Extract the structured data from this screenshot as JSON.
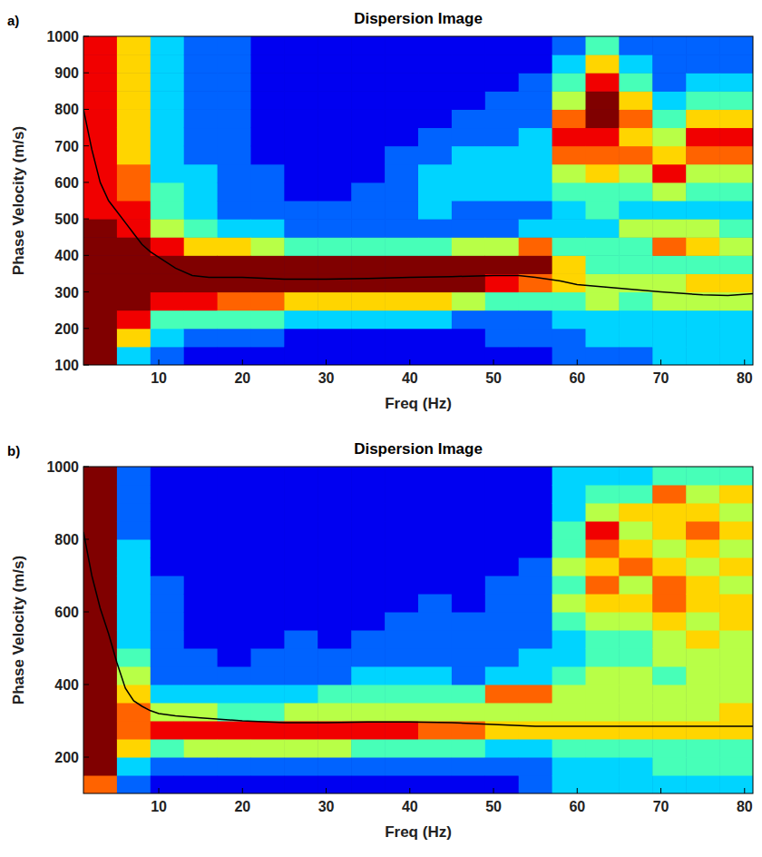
{
  "chart_data": [
    {
      "type": "heatmap",
      "panel": "a)",
      "title": "Dispersion Image",
      "xlabel": "Freq (Hz)",
      "ylabel": "Phase Velocity (m/s)",
      "xlim": [
        1,
        81
      ],
      "xticks": [
        10,
        20,
        30,
        40,
        50,
        60,
        70,
        80
      ],
      "ylim": [
        100,
        1000
      ],
      "yticks": [
        100,
        200,
        300,
        400,
        500,
        600,
        700,
        800,
        900,
        1000
      ],
      "zlim": [
        0,
        9
      ],
      "x_bins": [
        1,
        5,
        9,
        13,
        17,
        21,
        25,
        29,
        33,
        37,
        41,
        45,
        49,
        53,
        57,
        61,
        65,
        69,
        73,
        77,
        81
      ],
      "y_bins": [
        100,
        150,
        200,
        250,
        300,
        350,
        400,
        450,
        500,
        550,
        600,
        650,
        700,
        750,
        800,
        850,
        900,
        950,
        1000
      ],
      "cells": [
        [
          9,
          9,
          9,
          9,
          9,
          9,
          9,
          9,
          8,
          8,
          8,
          8,
          8,
          8,
          8,
          8,
          8,
          8
        ],
        [
          3,
          6,
          8,
          9,
          9,
          9,
          9,
          8,
          8,
          7,
          7,
          6,
          6,
          6,
          6,
          6,
          6,
          6
        ],
        [
          2,
          3,
          4,
          8,
          9,
          9,
          8,
          5,
          4,
          4,
          3,
          3,
          3,
          3,
          3,
          3,
          3,
          3
        ],
        [
          1,
          2,
          4,
          8,
          9,
          9,
          6,
          4,
          3,
          3,
          3,
          2,
          2,
          2,
          2,
          2,
          2,
          2
        ],
        [
          1,
          2,
          4,
          7,
          9,
          9,
          6,
          3,
          2,
          2,
          2,
          2,
          2,
          2,
          2,
          2,
          2,
          2
        ],
        [
          1,
          2,
          4,
          7,
          9,
          9,
          5,
          3,
          2,
          2,
          2,
          1,
          1,
          1,
          1,
          1,
          1,
          1
        ],
        [
          1,
          1,
          3,
          6,
          9,
          9,
          4,
          2,
          2,
          1,
          1,
          1,
          1,
          1,
          1,
          1,
          1,
          1
        ],
        [
          1,
          1,
          3,
          6,
          9,
          9,
          4,
          2,
          2,
          1,
          1,
          1,
          1,
          1,
          1,
          1,
          1,
          1
        ],
        [
          1,
          1,
          3,
          6,
          9,
          9,
          4,
          2,
          2,
          2,
          1,
          1,
          1,
          1,
          1,
          1,
          1,
          1
        ],
        [
          1,
          1,
          3,
          6,
          9,
          9,
          4,
          2,
          2,
          2,
          2,
          2,
          1,
          1,
          1,
          1,
          1,
          1
        ],
        [
          1,
          1,
          3,
          6,
          9,
          9,
          4,
          2,
          3,
          3,
          3,
          2,
          2,
          1,
          1,
          1,
          1,
          1
        ],
        [
          1,
          1,
          2,
          5,
          9,
          9,
          5,
          2,
          2,
          3,
          3,
          3,
          2,
          2,
          1,
          1,
          1,
          1
        ],
        [
          1,
          2,
          2,
          4,
          8,
          9,
          5,
          2,
          2,
          3,
          3,
          3,
          2,
          2,
          2,
          1,
          1,
          1
        ],
        [
          1,
          2,
          2,
          4,
          7,
          9,
          7,
          3,
          2,
          3,
          3,
          3,
          3,
          2,
          2,
          2,
          1,
          1
        ],
        [
          2,
          2,
          3,
          4,
          6,
          6,
          4,
          3,
          3,
          4,
          5,
          7,
          8,
          7,
          5,
          4,
          3,
          2
        ],
        [
          2,
          3,
          3,
          5,
          5,
          4,
          4,
          3,
          4,
          4,
          6,
          7,
          8,
          9,
          9,
          8,
          6,
          4
        ],
        [
          2,
          3,
          3,
          4,
          5,
          4,
          4,
          5,
          3,
          4,
          5,
          7,
          6,
          7,
          6,
          4,
          3,
          2
        ],
        [
          3,
          3,
          3,
          5,
          5,
          4,
          7,
          5,
          3,
          5,
          8,
          6,
          5,
          4,
          3,
          2,
          2,
          2
        ],
        [
          3,
          3,
          3,
          5,
          6,
          4,
          6,
          5,
          3,
          4,
          5,
          7,
          8,
          6,
          4,
          3,
          2,
          2
        ],
        [
          3,
          3,
          3,
          5,
          6,
          4,
          5,
          4,
          3,
          4,
          5,
          7,
          8,
          6,
          4,
          3,
          2,
          2
        ]
      ],
      "series": [
        {
          "type": "line",
          "color": "#000000",
          "x": [
            1,
            2,
            3,
            4,
            5,
            6,
            7,
            8,
            9,
            10,
            12,
            14,
            16,
            18,
            20,
            25,
            30,
            35,
            40,
            45,
            50,
            53,
            55,
            58,
            60,
            65,
            70,
            75,
            78,
            81
          ],
          "values": [
            800,
            690,
            600,
            550,
            520,
            490,
            460,
            430,
            410,
            395,
            365,
            345,
            340,
            340,
            340,
            335,
            335,
            337,
            340,
            342,
            345,
            345,
            340,
            330,
            320,
            310,
            300,
            292,
            290,
            295
          ]
        }
      ]
    },
    {
      "type": "heatmap",
      "panel": "b)",
      "title": "Dispersion Image",
      "xlabel": "Freq (Hz)",
      "ylabel": "Phase Velocity (m/s)",
      "xlim": [
        1,
        81
      ],
      "xticks": [
        10,
        20,
        30,
        40,
        50,
        60,
        70,
        80
      ],
      "ylim": [
        100,
        1000
      ],
      "yticks": [
        200,
        400,
        600,
        800,
        1000
      ],
      "zlim": [
        0,
        9
      ],
      "x_bins": [
        1,
        5,
        9,
        13,
        17,
        21,
        25,
        29,
        33,
        37,
        41,
        45,
        49,
        53,
        57,
        61,
        65,
        69,
        73,
        77,
        81
      ],
      "y_bins": [
        100,
        150,
        200,
        250,
        300,
        350,
        400,
        450,
        500,
        550,
        600,
        650,
        700,
        750,
        800,
        850,
        900,
        950,
        1000
      ],
      "cells": [
        [
          7,
          9,
          9,
          9,
          9,
          9,
          9,
          9,
          9,
          9,
          9,
          9,
          9,
          9,
          9,
          9,
          9,
          9
        ],
        [
          2,
          3,
          6,
          7,
          7,
          6,
          5,
          4,
          3,
          3,
          3,
          3,
          3,
          3,
          2,
          2,
          2,
          2
        ],
        [
          1,
          2,
          4,
          8,
          5,
          3,
          2,
          2,
          2,
          2,
          2,
          2,
          1,
          1,
          1,
          1,
          1,
          1
        ],
        [
          1,
          2,
          5,
          8,
          5,
          3,
          2,
          2,
          1,
          1,
          1,
          1,
          1,
          1,
          1,
          1,
          1,
          1
        ],
        [
          1,
          2,
          5,
          8,
          4,
          3,
          2,
          1,
          1,
          1,
          1,
          1,
          1,
          1,
          1,
          1,
          1,
          1
        ],
        [
          1,
          2,
          5,
          8,
          4,
          3,
          2,
          2,
          1,
          1,
          1,
          1,
          1,
          1,
          1,
          1,
          1,
          1
        ],
        [
          1,
          2,
          5,
          8,
          5,
          3,
          2,
          2,
          2,
          1,
          1,
          1,
          1,
          1,
          1,
          1,
          1,
          1
        ],
        [
          1,
          2,
          5,
          8,
          5,
          4,
          2,
          2,
          1,
          1,
          1,
          1,
          1,
          1,
          1,
          1,
          1,
          1
        ],
        [
          1,
          2,
          4,
          8,
          5,
          4,
          3,
          2,
          2,
          1,
          1,
          1,
          1,
          1,
          1,
          1,
          1,
          1
        ],
        [
          1,
          2,
          4,
          8,
          5,
          4,
          3,
          2,
          2,
          2,
          1,
          1,
          1,
          1,
          1,
          1,
          1,
          1
        ],
        [
          1,
          2,
          4,
          7,
          5,
          4,
          3,
          2,
          2,
          2,
          2,
          1,
          1,
          1,
          1,
          1,
          1,
          1
        ],
        [
          1,
          2,
          4,
          7,
          5,
          4,
          2,
          2,
          2,
          2,
          1,
          1,
          1,
          1,
          1,
          1,
          1,
          1
        ],
        [
          1,
          2,
          3,
          6,
          5,
          7,
          3,
          2,
          2,
          2,
          2,
          2,
          1,
          1,
          1,
          1,
          1,
          1
        ],
        [
          2,
          2,
          3,
          6,
          5,
          7,
          3,
          3,
          2,
          2,
          2,
          2,
          2,
          1,
          1,
          1,
          1,
          1
        ],
        [
          3,
          3,
          4,
          6,
          5,
          5,
          4,
          3,
          3,
          4,
          5,
          4,
          5,
          4,
          4,
          3,
          3,
          3
        ],
        [
          3,
          3,
          4,
          6,
          5,
          5,
          5,
          4,
          4,
          5,
          6,
          7,
          6,
          7,
          8,
          5,
          4,
          3
        ],
        [
          3,
          3,
          4,
          6,
          5,
          5,
          5,
          4,
          4,
          5,
          6,
          5,
          7,
          6,
          5,
          6,
          4,
          3
        ],
        [
          3,
          4,
          4,
          6,
          5,
          5,
          4,
          5,
          5,
          6,
          7,
          7,
          6,
          5,
          6,
          6,
          7,
          4
        ],
        [
          3,
          4,
          4,
          6,
          5,
          5,
          5,
          5,
          6,
          5,
          6,
          6,
          5,
          6,
          7,
          6,
          5,
          4
        ],
        [
          3,
          4,
          4,
          6,
          6,
          5,
          5,
          5,
          5,
          6,
          6,
          5,
          6,
          5,
          6,
          5,
          6,
          4
        ]
      ],
      "series": [
        {
          "type": "line",
          "color": "#000000",
          "x": [
            1,
            2,
            3,
            4,
            5,
            6,
            7,
            8,
            9,
            10,
            12,
            15,
            20,
            25,
            30,
            35,
            40,
            45,
            50,
            55,
            60,
            65,
            70,
            75,
            81
          ],
          "values": [
            820,
            700,
            610,
            540,
            460,
            390,
            355,
            340,
            328,
            320,
            314,
            308,
            300,
            295,
            295,
            297,
            297,
            295,
            290,
            285,
            285,
            285,
            285,
            285,
            285
          ]
        }
      ]
    }
  ]
}
